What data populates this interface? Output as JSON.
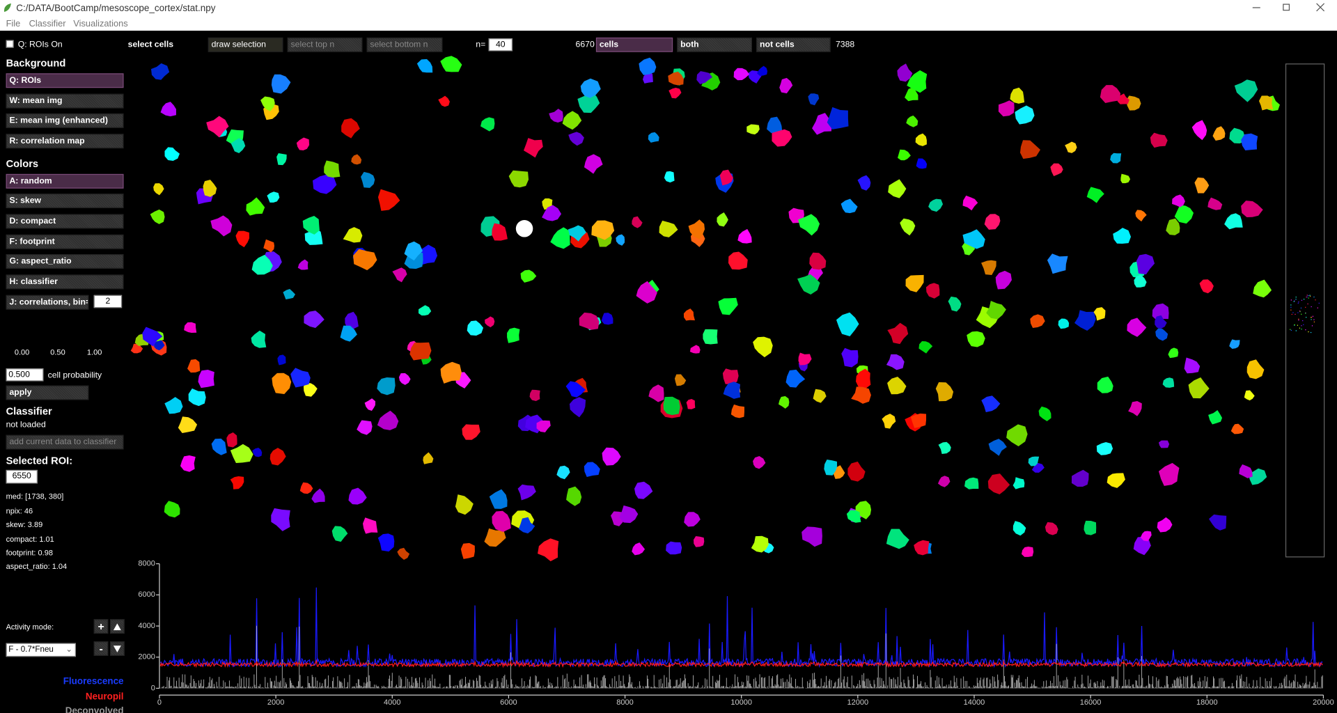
{
  "title_bar": {
    "title": "C:/DATA/BootCamp/mesoscope_cortex/stat.npy"
  },
  "menu": [
    "File",
    "Classifier",
    "Visualizations"
  ],
  "toolbar": {
    "rois_on": "Q: ROIs On",
    "select_cells": "select cells",
    "draw_selection": "draw selection",
    "select_top": "select top n",
    "select_bottom": "select bottom n",
    "n_label": "n=",
    "n_value": "40",
    "cells_count": "6670",
    "cells": "cells",
    "both": "both",
    "not_cells": "not cells",
    "not_cells_count": "7388"
  },
  "sidebar": {
    "background_heading": "Background",
    "background_buttons": [
      "Q: ROIs",
      "W: mean img",
      "E: mean img (enhanced)",
      "R: correlation map"
    ],
    "colors_heading": "Colors",
    "color_buttons": [
      "A: random",
      "S: skew",
      "D: compact",
      "F: footprint",
      "G: aspect_ratio",
      "H: classifier",
      "J: correlations, bin="
    ],
    "bin_value": "2",
    "colorbar_ticks": [
      "0.00",
      "0.50",
      "1.00"
    ],
    "probability_value": "0.500",
    "probability_label": "cell probability",
    "apply": "apply",
    "classifier_heading": "Classifier",
    "classifier_status": "not loaded",
    "add_data": "add current data to classifier",
    "selected_heading": "Selected ROI:",
    "selected_value": "6550",
    "stats": [
      "med: [1738, 380]",
      "npix: 46",
      "skew: 3.89",
      "compact: 1.01",
      "footprint: 0.98",
      "aspect_ratio: 1.04"
    ],
    "activity_mode_label": "Activity mode:",
    "activity_mode": "F - 0.7*Fneu",
    "plus": "+",
    "minus": "-",
    "legend": [
      "Fluorescence",
      "Neuropil",
      "Deconvolved"
    ]
  },
  "trace_plot": {
    "xlim": [
      0,
      20000
    ],
    "xticks": [
      0,
      2000,
      4000,
      6000,
      8000,
      10000,
      12000,
      14000,
      16000,
      18000,
      20000
    ],
    "ylim": [
      0,
      8000
    ],
    "yticks": [
      0,
      2000,
      4000,
      6000,
      8000
    ]
  }
}
